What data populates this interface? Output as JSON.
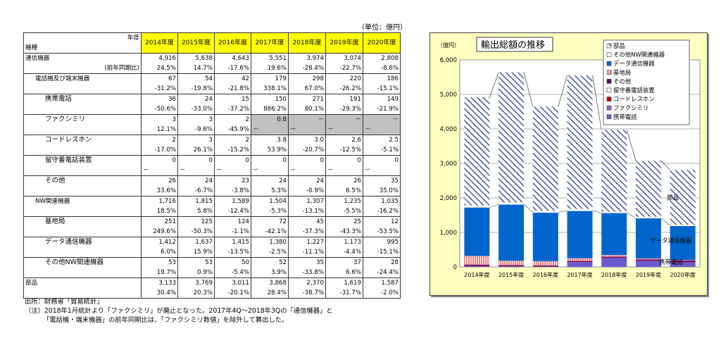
{
  "table": {
    "unit": "（単位：億円）",
    "header_year_label": "年度",
    "header_type_label": "機種",
    "years": [
      "2014年度",
      "2015年度",
      "2016年度",
      "2017年度",
      "2018年度",
      "2019年度",
      "2020年度"
    ],
    "yoy_label": "(前年同期比)",
    "rows": [
      {
        "label": "通信機器",
        "indent": 0,
        "values": [
          "4,916",
          "5,638",
          "4,643",
          "5,551",
          "3,974",
          "3,074",
          "2,808"
        ],
        "yoy": [
          "24.5%",
          "14.7%",
          "-17.6%",
          "19.6%",
          "-28.4%",
          "-22.7%",
          "-8.6%"
        ]
      },
      {
        "label": "電話機及び端末機器",
        "indent": 1,
        "values": [
          "67",
          "54",
          "42",
          "179",
          "298",
          "220",
          "186"
        ],
        "yoy": [
          "-31.2%",
          "-19.8%",
          "-21.8%",
          "338.1%",
          "67.0%",
          "-26.2%",
          "-15.1%"
        ]
      },
      {
        "label": "携帯電話",
        "indent": 2,
        "values": [
          "36",
          "24",
          "15",
          "150",
          "271",
          "191",
          "149"
        ],
        "yoy": [
          "-50.6%",
          "-33.0%",
          "-37.2%",
          "886.2%",
          "80.1%",
          "-29.3%",
          "-21.9%"
        ]
      },
      {
        "label": "ファクシミリ",
        "indent": 2,
        "values": [
          "3",
          "3",
          "2",
          "0.8",
          "－",
          "－",
          "－"
        ],
        "yoy": [
          "12.1%",
          "-9.6%",
          "-45.9%",
          "－",
          "－",
          "－",
          "－"
        ]
      },
      {
        "label": "コードレスホン",
        "indent": 2,
        "values": [
          "2",
          "3",
          "2",
          "3.8",
          "3.0",
          "2.6",
          "2.5"
        ],
        "yoy": [
          "-17.0%",
          "26.1%",
          "-15.2%",
          "53.9%",
          "-20.7%",
          "-12.5%",
          "-5.1%"
        ]
      },
      {
        "label": "留守番電話装置",
        "indent": 2,
        "values": [
          "0",
          "0",
          "0",
          "0",
          "0",
          "0",
          "0"
        ],
        "yoy": [
          "－",
          "－",
          "－",
          "－",
          "－",
          "－",
          "－"
        ]
      },
      {
        "label": "その他",
        "indent": 2,
        "values": [
          "26",
          "24",
          "23",
          "24",
          "24",
          "26",
          "35"
        ],
        "yoy": [
          "33.6%",
          "-6.7%",
          "-3.8%",
          "5.3%",
          "-0.9%",
          "6.5%",
          "35.0%"
        ]
      },
      {
        "label": "NW関連機器",
        "indent": 1,
        "values": [
          "1,716",
          "1,815",
          "1,589",
          "1,504",
          "1,307",
          "1,235",
          "1,035"
        ],
        "yoy": [
          "18.5%",
          "5.8%",
          "-12.4%",
          "-5.3%",
          "-13.1%",
          "-5.5%",
          "-16.2%"
        ]
      },
      {
        "label": "基地局",
        "indent": 2,
        "values": [
          "251",
          "125",
          "124",
          "72",
          "45",
          "25",
          "12"
        ],
        "yoy": [
          "249.6%",
          "-50.3%",
          "-1.1%",
          "-42.1%",
          "-37.3%",
          "-43.3%",
          "-53.5%"
        ]
      },
      {
        "label": "データ通信機器",
        "indent": 2,
        "values": [
          "1,412",
          "1,637",
          "1,415",
          "1,380",
          "1,227",
          "1,173",
          "995"
        ],
        "yoy": [
          "6.0%",
          "15.9%",
          "-13.5%",
          "-2.5%",
          "-11.1%",
          "-4.4%",
          "-15.1%"
        ]
      },
      {
        "label": "その他NW関連機器",
        "indent": 2,
        "values": [
          "53",
          "53",
          "50",
          "52",
          "35",
          "37",
          "28"
        ],
        "yoy": [
          "19.7%",
          "0.9%",
          "-5.4%",
          "3.9%",
          "-33.8%",
          "6.6%",
          "-24.4%"
        ]
      },
      {
        "label": "部品",
        "indent": 0,
        "values": [
          "3,133",
          "3,769",
          "3,011",
          "3,868",
          "2,370",
          "1,619",
          "1,587"
        ],
        "yoy": [
          "30.4%",
          "20.3%",
          "-20.1%",
          "28.4%",
          "-38.7%",
          "-31.7%",
          "-2.0%"
        ]
      }
    ]
  },
  "notes": {
    "source": "出所：財務省「貿易統計」",
    "note1": "（注）2018年1月統計より「ファクシミリ」が廃止となった。2017年4Q～2018年3Qの「通信機器」と",
    "note2": "「電話機・端末機器」の前年同期比は、「ファクシミリ数値」を除外して算出した。"
  },
  "chart_data": {
    "type": "bar",
    "stacked": true,
    "title": "輸出総額の推移",
    "ylabel": "（億円）",
    "ylim": [
      0,
      6000
    ],
    "yticks": [
      "0",
      "1,000",
      "2,000",
      "3,000",
      "4,000",
      "5,000",
      "6,000"
    ],
    "categories": [
      "2014年度",
      "2015年度",
      "2016年度",
      "2017年度",
      "2018年度",
      "2019年度",
      "2020年度"
    ],
    "series": [
      {
        "name": "携帯電話",
        "color": "#6a5acd",
        "pattern": "solid",
        "values": [
          36,
          24,
          15,
          150,
          271,
          191,
          149
        ]
      },
      {
        "name": "ファクシミリ",
        "color": "#9966cc",
        "pattern": "solid",
        "values": [
          3,
          3,
          2,
          0.8,
          0,
          0,
          0
        ]
      },
      {
        "name": "コードレスホン",
        "color": "#cc0000",
        "pattern": "solid",
        "values": [
          2,
          3,
          2,
          3.8,
          3.0,
          2.6,
          2.5
        ]
      },
      {
        "name": "留守番電話装置",
        "color": "#ffffff",
        "pattern": "solid",
        "values": [
          0,
          0,
          0,
          0,
          0,
          0,
          0
        ]
      },
      {
        "name": "その他",
        "color": "#660066",
        "pattern": "solid",
        "values": [
          26,
          24,
          23,
          24,
          24,
          26,
          35
        ]
      },
      {
        "name": "基地局",
        "color": "#ff6666",
        "pattern": "vlines",
        "values": [
          251,
          125,
          124,
          72,
          45,
          25,
          12
        ]
      },
      {
        "name": "データ通信機器",
        "color": "#0066cc",
        "pattern": "solid",
        "values": [
          1412,
          1637,
          1415,
          1380,
          1227,
          1173,
          995
        ]
      },
      {
        "name": "その他NW関連機器",
        "color": "#ffffff",
        "pattern": "solid",
        "values": [
          53,
          53,
          50,
          52,
          35,
          37,
          28
        ]
      },
      {
        "name": "部品",
        "color": "#1f2d8f",
        "pattern": "diag",
        "values": [
          3133,
          3769,
          3011,
          3868,
          2370,
          1619,
          1587
        ]
      }
    ],
    "legend_order": [
      "部品",
      "その他NW関連機器",
      "データ通信機器",
      "基地局",
      "その他",
      "留守番電話装置",
      "コードレスホン",
      "ファクシミリ",
      "携帯電話"
    ],
    "annotations": [
      "部品",
      "データ通信機器",
      "携帯電話"
    ],
    "legend_position": "top-right",
    "grid": true
  }
}
